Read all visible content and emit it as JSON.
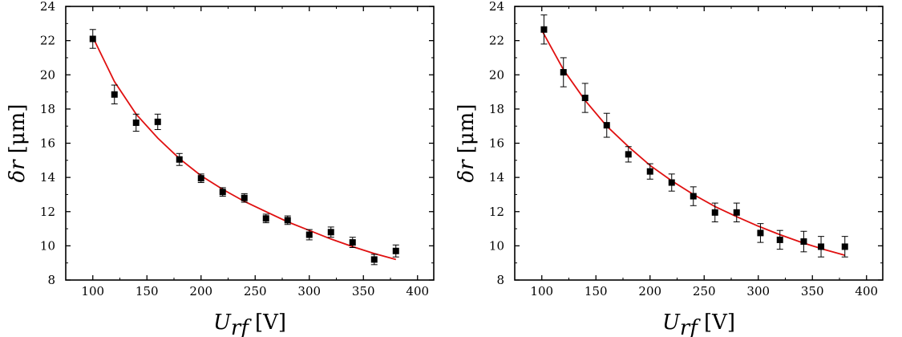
{
  "chart_data": [
    {
      "type": "scatter",
      "xlabel_var": "U",
      "xlabel_sub": "rf",
      "xlabel_unit": "[V]",
      "ylabel_var": "δr",
      "ylabel_unit": "[μm]",
      "xlim": [
        75,
        415
      ],
      "ylim": [
        8,
        24
      ],
      "xticks": [
        100,
        150,
        200,
        250,
        300,
        350,
        400
      ],
      "yticks": [
        8,
        10,
        12,
        14,
        16,
        18,
        20,
        22,
        24
      ],
      "grid": false,
      "colors": {
        "points": "#000000",
        "fit": "#e01010"
      },
      "points": [
        {
          "x": 100,
          "y": 22.1,
          "err": 0.55
        },
        {
          "x": 120,
          "y": 18.85,
          "err": 0.55
        },
        {
          "x": 140,
          "y": 17.2,
          "err": 0.5
        },
        {
          "x": 160,
          "y": 17.25,
          "err": 0.45
        },
        {
          "x": 180,
          "y": 15.05,
          "err": 0.35
        },
        {
          "x": 200,
          "y": 13.95,
          "err": 0.25
        },
        {
          "x": 220,
          "y": 13.15,
          "err": 0.25
        },
        {
          "x": 240,
          "y": 12.8,
          "err": 0.25
        },
        {
          "x": 260,
          "y": 11.6,
          "err": 0.25
        },
        {
          "x": 280,
          "y": 11.5,
          "err": 0.25
        },
        {
          "x": 300,
          "y": 10.65,
          "err": 0.3
        },
        {
          "x": 320,
          "y": 10.8,
          "err": 0.3
        },
        {
          "x": 340,
          "y": 10.2,
          "err": 0.3
        },
        {
          "x": 360,
          "y": 9.2,
          "err": 0.3
        },
        {
          "x": 380,
          "y": 9.7,
          "err": 0.35
        }
      ],
      "fit": [
        {
          "x": 100,
          "y": 22.2
        },
        {
          "x": 120,
          "y": 19.6
        },
        {
          "x": 140,
          "y": 17.7
        },
        {
          "x": 160,
          "y": 16.3
        },
        {
          "x": 180,
          "y": 15.1
        },
        {
          "x": 200,
          "y": 14.1
        },
        {
          "x": 220,
          "y": 13.3
        },
        {
          "x": 240,
          "y": 12.6
        },
        {
          "x": 260,
          "y": 12.0
        },
        {
          "x": 280,
          "y": 11.4
        },
        {
          "x": 300,
          "y": 10.9
        },
        {
          "x": 320,
          "y": 10.4
        },
        {
          "x": 340,
          "y": 9.95
        },
        {
          "x": 360,
          "y": 9.55
        },
        {
          "x": 380,
          "y": 9.2
        }
      ]
    },
    {
      "type": "scatter",
      "xlabel_var": "U",
      "xlabel_sub": "rf",
      "xlabel_unit": "[V]",
      "ylabel_var": "δr",
      "ylabel_unit": "[μm]",
      "xlim": [
        75,
        415
      ],
      "ylim": [
        8,
        24
      ],
      "xticks": [
        100,
        150,
        200,
        250,
        300,
        350,
        400
      ],
      "yticks": [
        8,
        10,
        12,
        14,
        16,
        18,
        20,
        22,
        24
      ],
      "grid": false,
      "colors": {
        "points": "#000000",
        "fit": "#e01010"
      },
      "points": [
        {
          "x": 102,
          "y": 22.65,
          "err": 0.85
        },
        {
          "x": 120,
          "y": 20.15,
          "err": 0.85
        },
        {
          "x": 140,
          "y": 18.65,
          "err": 0.85
        },
        {
          "x": 160,
          "y": 17.05,
          "err": 0.7
        },
        {
          "x": 180,
          "y": 15.35,
          "err": 0.45
        },
        {
          "x": 200,
          "y": 14.35,
          "err": 0.45
        },
        {
          "x": 220,
          "y": 13.7,
          "err": 0.5
        },
        {
          "x": 240,
          "y": 12.9,
          "err": 0.55
        },
        {
          "x": 260,
          "y": 11.95,
          "err": 0.55
        },
        {
          "x": 280,
          "y": 11.95,
          "err": 0.55
        },
        {
          "x": 302,
          "y": 10.75,
          "err": 0.55
        },
        {
          "x": 320,
          "y": 10.35,
          "err": 0.55
        },
        {
          "x": 342,
          "y": 10.25,
          "err": 0.6
        },
        {
          "x": 358,
          "y": 9.95,
          "err": 0.6
        },
        {
          "x": 380,
          "y": 9.95,
          "err": 0.6
        }
      ],
      "fit": [
        {
          "x": 100,
          "y": 22.6
        },
        {
          "x": 120,
          "y": 20.3
        },
        {
          "x": 140,
          "y": 18.5
        },
        {
          "x": 160,
          "y": 17.0
        },
        {
          "x": 180,
          "y": 15.8
        },
        {
          "x": 200,
          "y": 14.7
        },
        {
          "x": 220,
          "y": 13.8
        },
        {
          "x": 240,
          "y": 13.0
        },
        {
          "x": 260,
          "y": 12.3
        },
        {
          "x": 280,
          "y": 11.7
        },
        {
          "x": 300,
          "y": 11.15
        },
        {
          "x": 320,
          "y": 10.65
        },
        {
          "x": 340,
          "y": 10.2
        },
        {
          "x": 360,
          "y": 9.8
        },
        {
          "x": 380,
          "y": 9.45
        }
      ]
    }
  ]
}
